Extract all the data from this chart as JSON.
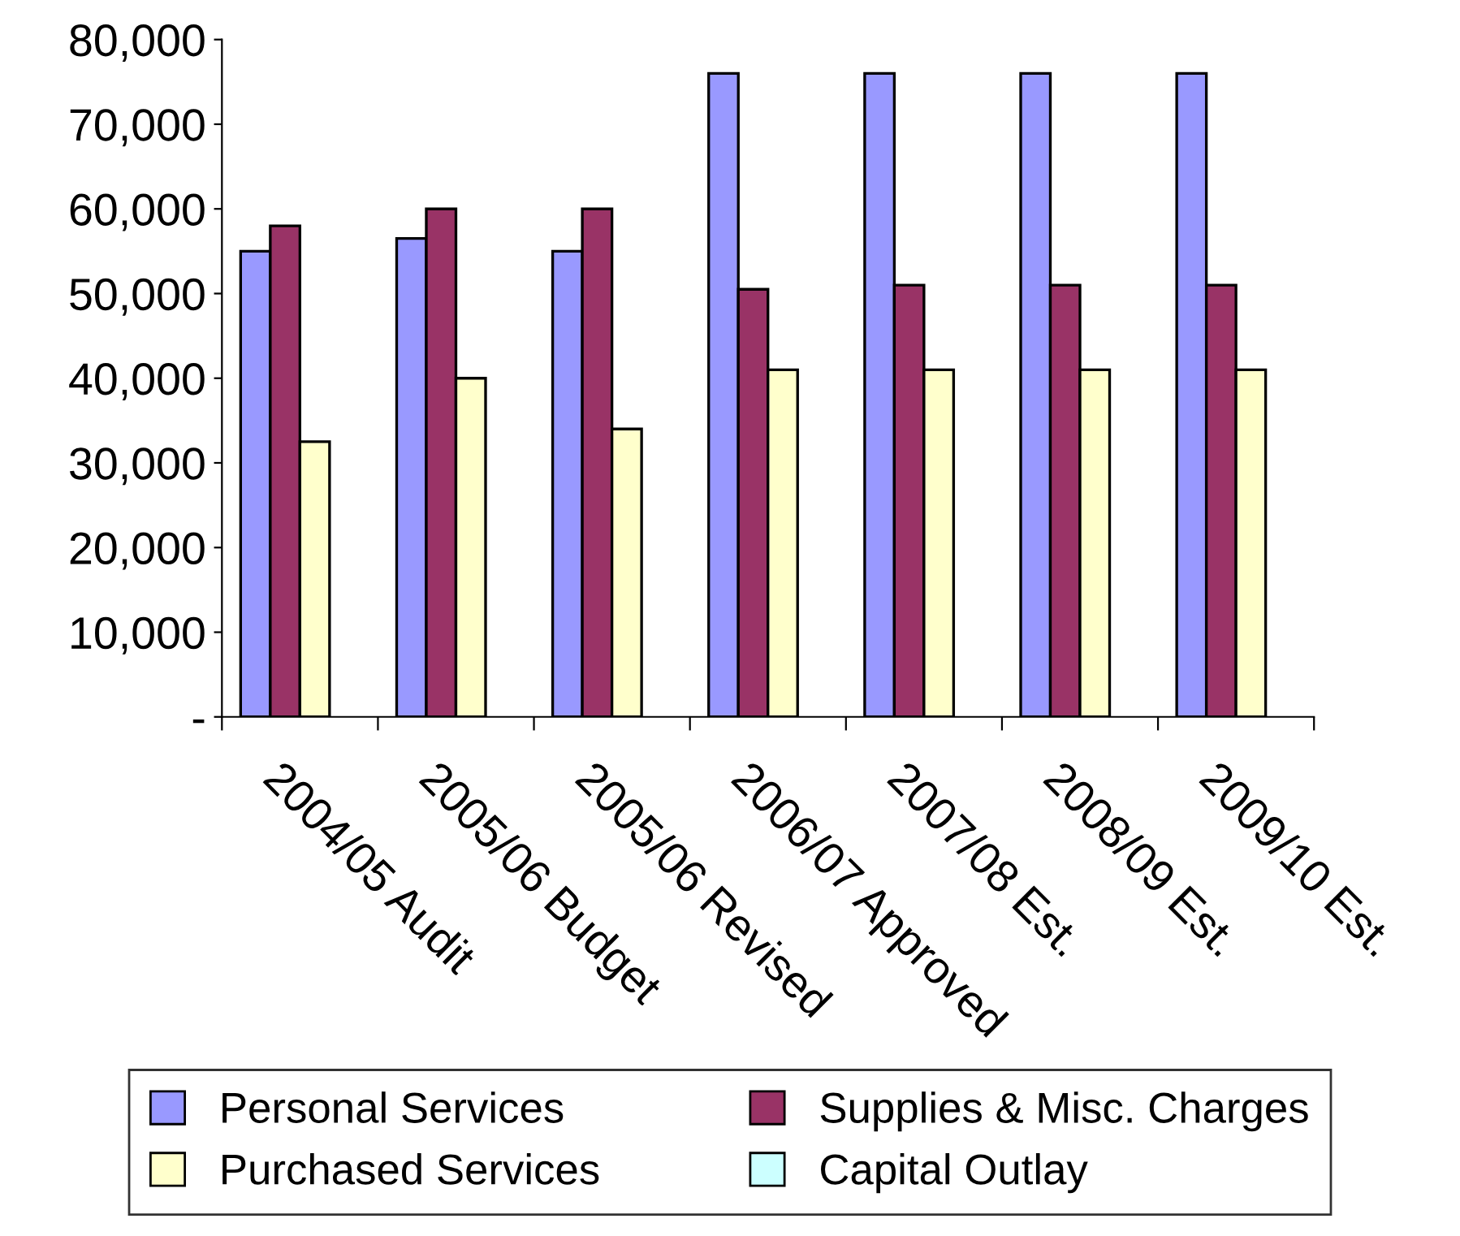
{
  "chart_data": {
    "type": "bar",
    "categories": [
      "2004/05 Audit",
      "2005/06 Budget",
      "2005/06 Revised",
      "2006/07 Approved",
      "2007/08 Est.",
      "2008/09 Est.",
      "2009/10 Est."
    ],
    "series": [
      {
        "name": "Personal Services",
        "color": "#9999ff",
        "values": [
          55000,
          56500,
          55000,
          76000,
          76000,
          76000,
          76000
        ]
      },
      {
        "name": "Supplies & Misc. Charges",
        "color": "#993366",
        "values": [
          58000,
          60000,
          60000,
          50500,
          51000,
          51000,
          51000
        ]
      },
      {
        "name": "Purchased Services",
        "color": "#ffffcc",
        "values": [
          32500,
          40000,
          34000,
          41000,
          41000,
          41000,
          41000
        ]
      },
      {
        "name": "Capital Outlay",
        "color": "#ccffff",
        "values": [
          null,
          null,
          null,
          null,
          null,
          null,
          null
        ]
      }
    ],
    "ylim": [
      0,
      80000
    ],
    "yticks": [
      {
        "value": 0,
        "label": "-"
      },
      {
        "value": 10000,
        "label": "10,000"
      },
      {
        "value": 20000,
        "label": "20,000"
      },
      {
        "value": 30000,
        "label": "30,000"
      },
      {
        "value": 40000,
        "label": "40,000"
      },
      {
        "value": 50000,
        "label": "50,000"
      },
      {
        "value": 60000,
        "label": "60,000"
      },
      {
        "value": 70000,
        "label": "70,000"
      },
      {
        "value": 80000,
        "label": "80,000"
      }
    ],
    "grid": false,
    "legend": "bottom"
  }
}
